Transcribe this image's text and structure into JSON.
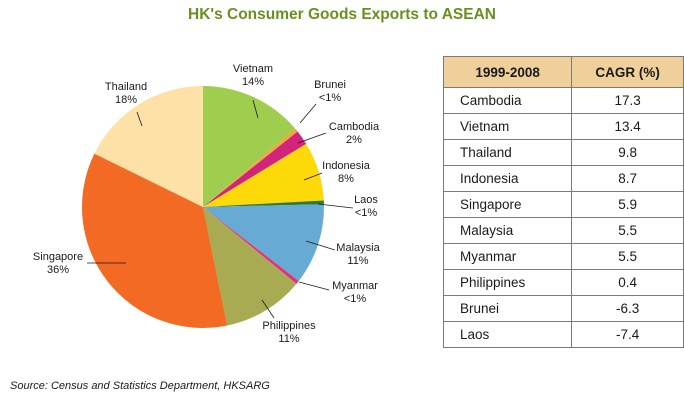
{
  "chart_data": [
    {
      "type": "pie",
      "title": "HK's Consumer Goods Exports to ASEAN",
      "start_angle_deg": 0,
      "direction": "clockwise",
      "slices": [
        {
          "name": "Vietnam",
          "value": 14,
          "label": "14%",
          "color": "#9fcd4e"
        },
        {
          "name": "Brunei",
          "value": 0.5,
          "label": "<1%",
          "color": "#f5a640"
        },
        {
          "name": "Cambodia",
          "value": 2,
          "label": "2%",
          "color": "#d0257a"
        },
        {
          "name": "Indonesia",
          "value": 8,
          "label": "8%",
          "color": "#fdd90a"
        },
        {
          "name": "Laos",
          "value": 0.5,
          "label": "<1%",
          "color": "#2a7a3a"
        },
        {
          "name": "Malaysia",
          "value": 11,
          "label": "11%",
          "color": "#67abd4"
        },
        {
          "name": "Myanmar",
          "value": 0.5,
          "label": "<1%",
          "color": "#e2337a"
        },
        {
          "name": "Philippines",
          "value": 11,
          "label": "11%",
          "color": "#a9ab53"
        },
        {
          "name": "Singapore",
          "value": 36,
          "label": "36%",
          "color": "#f26a24"
        },
        {
          "name": "Thailand",
          "value": 18,
          "label": "18%",
          "color": "#fde1a6"
        }
      ]
    },
    {
      "type": "table",
      "columns": [
        "1999-2008",
        "CAGR (%)"
      ],
      "rows": [
        {
          "country": "Cambodia",
          "cagr": "17.3"
        },
        {
          "country": "Vietnam",
          "cagr": "13.4"
        },
        {
          "country": "Thailand",
          "cagr": "9.8"
        },
        {
          "country": "Indonesia",
          "cagr": "8.7"
        },
        {
          "country": "Singapore",
          "cagr": "5.9"
        },
        {
          "country": "Malaysia",
          "cagr": "5.5"
        },
        {
          "country": "Myanmar",
          "cagr": "5.5"
        },
        {
          "country": "Philippines",
          "cagr": "0.4"
        },
        {
          "country": "Brunei",
          "cagr": "-6.3"
        },
        {
          "country": "Laos",
          "cagr": "-7.4"
        }
      ]
    }
  ],
  "source": "Source: Census and Statistics Department, HKSARG"
}
